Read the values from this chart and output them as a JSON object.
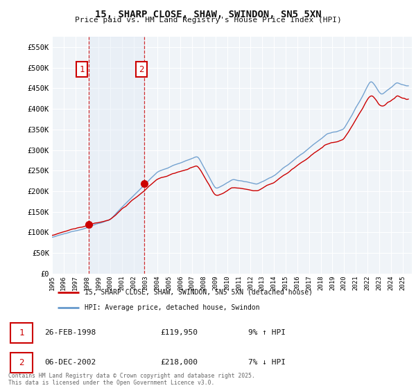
{
  "title": "15, SHARP CLOSE, SHAW, SWINDON, SN5 5XN",
  "subtitle": "Price paid vs. HM Land Registry's House Price Index (HPI)",
  "ytick_values": [
    0,
    50000,
    100000,
    150000,
    200000,
    250000,
    300000,
    350000,
    400000,
    450000,
    500000,
    550000
  ],
  "ylim": [
    0,
    575000
  ],
  "xlim_start": 1995.0,
  "xlim_end": 2025.8,
  "background_color": "#ffffff",
  "plot_bg_color": "#f0f4f8",
  "grid_color": "#ffffff",
  "hpi_color": "#6699cc",
  "price_color": "#cc0000",
  "dashed_color": "#cc0000",
  "shade_color": "#dce8f5",
  "annotation_box_color": "#cc0000",
  "sale1_x": 1998.14,
  "sale1_price": 119950,
  "sale2_x": 2002.92,
  "sale2_price": 218000,
  "sale1_text": "26-FEB-1998",
  "sale1_price_str": "£119,950",
  "sale1_hpi": "9% ↑ HPI",
  "sale2_text": "06-DEC-2002",
  "sale2_price_str": "£218,000",
  "sale2_hpi": "7% ↓ HPI",
  "legend_line1": "15, SHARP CLOSE, SHAW, SWINDON, SN5 5XN (detached house)",
  "legend_line2": "HPI: Average price, detached house, Swindon",
  "footer": "Contains HM Land Registry data © Crown copyright and database right 2025.\nThis data is licensed under the Open Government Licence v3.0.",
  "xtick_years": [
    1995,
    1996,
    1997,
    1998,
    1999,
    2000,
    2001,
    2002,
    2003,
    2004,
    2005,
    2006,
    2007,
    2008,
    2009,
    2010,
    2011,
    2012,
    2013,
    2014,
    2015,
    2016,
    2017,
    2018,
    2019,
    2020,
    2021,
    2022,
    2023,
    2024,
    2025
  ]
}
